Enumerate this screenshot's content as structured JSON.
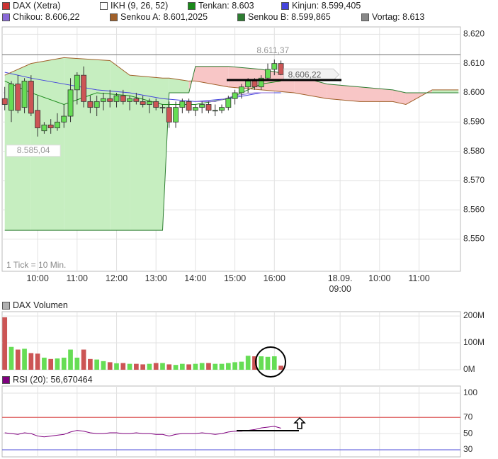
{
  "chart_data": [
    {
      "type": "candlestick",
      "name": "DAX (Xetra)",
      "color": "#cc3333",
      "up_color": "#66dd55",
      "down_color": "#cc5555",
      "x": [
        1,
        2,
        3,
        4,
        5,
        6,
        7,
        8,
        9,
        10,
        11,
        12,
        13,
        14,
        15,
        16,
        17,
        18,
        19,
        20,
        21,
        22,
        23,
        24,
        25,
        26,
        27,
        28,
        29,
        30,
        31,
        32,
        33,
        34,
        35,
        36,
        37,
        38,
        39,
        40,
        41,
        42,
        43
      ],
      "open": [
        8598,
        8594,
        8603,
        8595,
        8604,
        8594,
        8587,
        8589,
        8588,
        8590,
        8592,
        8601,
        8606,
        8597,
        8595,
        8597,
        8598,
        8597,
        8599,
        8597,
        8598,
        8597,
        8596,
        8597,
        8595,
        8595,
        8590,
        8595,
        8597,
        8594,
        8595,
        8596,
        8594,
        8594,
        8595,
        8598,
        8600,
        8602,
        8604,
        8602,
        8605,
        8608,
        8610
      ],
      "high": [
        8602,
        8604,
        8606,
        8605,
        8606,
        8599,
        8590,
        8591,
        8593,
        8596,
        8605,
        8607,
        8609,
        8599,
        8599,
        8600,
        8601,
        8600,
        8601,
        8599,
        8600,
        8599,
        8598,
        8598,
        8596,
        8597,
        8597,
        8598,
        8598,
        8596,
        8597,
        8597,
        8596,
        8596,
        8599,
        8601,
        8603,
        8605,
        8605,
        8606,
        8610,
        8611.37,
        8611
      ],
      "low": [
        8594,
        8590,
        8593,
        8593,
        8592,
        8585.04,
        8586,
        8586,
        8587,
        8588,
        8590,
        8596,
        8595,
        8593,
        8592,
        8594,
        8595,
        8595,
        8596,
        8594,
        8596,
        8595,
        8593,
        8594,
        8593,
        8588,
        8588,
        8593,
        8593,
        8592,
        8593,
        8593,
        8592,
        8593,
        8594,
        8596,
        8598,
        8600,
        8601,
        8601,
        8604,
        8606,
        8606
      ],
      "close": [
        8596,
        8603,
        8594,
        8604,
        8593,
        8588,
        8589,
        8588,
        8590,
        8592,
        8601,
        8606,
        8597,
        8595,
        8597,
        8598,
        8597,
        8599,
        8597,
        8598,
        8597,
        8596,
        8597,
        8595,
        8595,
        8590,
        8595,
        8597,
        8594,
        8595,
        8596,
        8594,
        8594,
        8595,
        8598,
        8600,
        8602,
        8604,
        8602,
        8605,
        8608,
        8610,
        8606.22
      ],
      "high_label": "8.611,37",
      "low_label": "8.585,04",
      "last_label": "8.606,22",
      "note": "1 Tick = 10 Min.",
      "cloud": {
        "name": "IKH (9, 26, 52)",
        "color": "#ffffff",
        "up_color": "#c6eec0",
        "down_color": "#f8c6c6"
      },
      "overlays": [
        {
          "name": "Tenkan: 8.603",
          "color": "#1a8a1a",
          "x": [
            1,
            5,
            10,
            15,
            20,
            25,
            30,
            35,
            40,
            43
          ],
          "values": [
            8604,
            8600,
            8596,
            8600,
            8599,
            8596,
            8596,
            8598,
            8603,
            8604
          ]
        },
        {
          "name": "Kinjun: 8.599,405",
          "color": "#4444dd",
          "x": [
            1,
            5,
            10,
            15,
            20,
            25,
            30,
            35,
            40,
            43
          ],
          "values": [
            8607,
            8605,
            8603,
            8601,
            8600,
            8598,
            8597,
            8598,
            8600,
            8600
          ]
        },
        {
          "name": "Chikou: 8.606,22",
          "color": "#8a6ad8",
          "x": [
            30,
            33,
            36,
            39,
            42
          ],
          "values": [
            8597,
            8597,
            8599,
            8600,
            8600
          ]
        },
        {
          "name": "Senkou A: 8.601,2025",
          "color": "#a0602a",
          "x": [
            1,
            5,
            10,
            17,
            20,
            25,
            26,
            29,
            30,
            35,
            40,
            45,
            50,
            55,
            60,
            62,
            66,
            70
          ],
          "values": [
            8606,
            8610,
            8612,
            8611,
            8606,
            8605,
            8605,
            8604,
            8604,
            8602,
            8601,
            8600,
            8598,
            8597,
            8597,
            8596,
            8601,
            8601
          ]
        },
        {
          "name": "Senkou B: 8.599,865",
          "color": "#2e7d32",
          "x": [
            1,
            5,
            10,
            17,
            20,
            25,
            26,
            29,
            30,
            35,
            40,
            45,
            50,
            55,
            60,
            62,
            66,
            70
          ],
          "values": [
            8553,
            8553,
            8553,
            8553,
            8553,
            8553,
            8600,
            8600,
            8609,
            8609,
            8608,
            8606,
            8603,
            8602,
            8601,
            8600,
            8600,
            8600
          ]
        }
      ],
      "reference": {
        "name": "Vortag: 8.613",
        "color": "#888888",
        "value": 8613
      },
      "xlim": [
        0.6,
        70.3
      ],
      "xticks": [
        {
          "value": 6,
          "label": "10:00"
        },
        {
          "value": 12,
          "label": "11:00"
        },
        {
          "value": 18,
          "label": "12:00"
        },
        {
          "value": 24,
          "label": "13:00"
        },
        {
          "value": 30,
          "label": "14:00"
        },
        {
          "value": 36,
          "label": "15:00"
        },
        {
          "value": 42,
          "label": "16:00"
        },
        {
          "value": 52,
          "label": "18.09.\n09:00"
        },
        {
          "value": 58,
          "label": "10:00"
        },
        {
          "value": 64,
          "label": "11:00"
        }
      ],
      "ylim": [
        8539,
        8622.5
      ],
      "yticks": [
        {
          "value": 8550,
          "label": "8.550"
        },
        {
          "value": 8560,
          "label": "8.560"
        },
        {
          "value": 8570,
          "label": "8.570"
        },
        {
          "value": 8580,
          "label": "8.580"
        },
        {
          "value": 8590,
          "label": "8.590"
        },
        {
          "value": 8600,
          "label": "8.600"
        },
        {
          "value": 8610,
          "label": "8.610"
        },
        {
          "value": 8620,
          "label": "8.620"
        }
      ],
      "grid": true
    },
    {
      "type": "bar",
      "title": "DAX Volumen",
      "color": "#b0b0b0",
      "up_color": "#66dd55",
      "down_color": "#cc5555",
      "x": [
        1,
        2,
        3,
        4,
        5,
        6,
        7,
        8,
        9,
        10,
        11,
        12,
        13,
        14,
        15,
        16,
        17,
        18,
        19,
        20,
        21,
        22,
        23,
        24,
        25,
        26,
        27,
        28,
        29,
        30,
        31,
        32,
        33,
        34,
        35,
        36,
        37,
        38,
        39,
        40,
        41,
        42,
        43
      ],
      "values": [
        195000000,
        85000000,
        75000000,
        78000000,
        62000000,
        60000000,
        45000000,
        40000000,
        42000000,
        45000000,
        75000000,
        45000000,
        75000000,
        40000000,
        38000000,
        32000000,
        28000000,
        24000000,
        25000000,
        22000000,
        22000000,
        20000000,
        22000000,
        25000000,
        25000000,
        20000000,
        18000000,
        22000000,
        20000000,
        22000000,
        25000000,
        25000000,
        22000000,
        22000000,
        25000000,
        28000000,
        30000000,
        52000000,
        50000000,
        50000000,
        48000000,
        50000000,
        15000000
      ],
      "ylim": [
        0,
        216000000
      ],
      "yticks": [
        {
          "value": 0,
          "label": "0M"
        },
        {
          "value": 100000000,
          "label": "100M"
        },
        {
          "value": 200000000,
          "label": "200M"
        }
      ],
      "grid": true
    },
    {
      "type": "line",
      "title": "RSI (20): 56,670464",
      "color": "#800080",
      "x": [
        1,
        2,
        3,
        4,
        5,
        6,
        7,
        8,
        9,
        10,
        11,
        12,
        13,
        14,
        15,
        16,
        17,
        18,
        19,
        20,
        21,
        22,
        23,
        24,
        25,
        26,
        27,
        28,
        29,
        30,
        31,
        32,
        33,
        34,
        35,
        36,
        37,
        38,
        39,
        40,
        41,
        42,
        43
      ],
      "values": [
        51,
        50,
        49,
        51,
        50,
        47,
        46,
        47,
        48,
        49,
        52,
        54,
        53,
        51,
        50,
        50,
        51,
        51,
        50,
        50,
        51,
        50,
        50,
        49,
        49,
        47,
        49,
        50,
        50,
        50,
        51,
        50,
        49,
        50,
        52,
        53,
        53,
        54,
        55,
        57,
        58,
        59,
        56.670464
      ],
      "levels": [
        {
          "value": 70,
          "color": "#e06060"
        },
        {
          "value": 30,
          "color": "#7070e0"
        }
      ],
      "ylim": [
        21.25,
        108.75
      ],
      "yticks": [
        30,
        50,
        70,
        100
      ],
      "grid": true
    }
  ]
}
